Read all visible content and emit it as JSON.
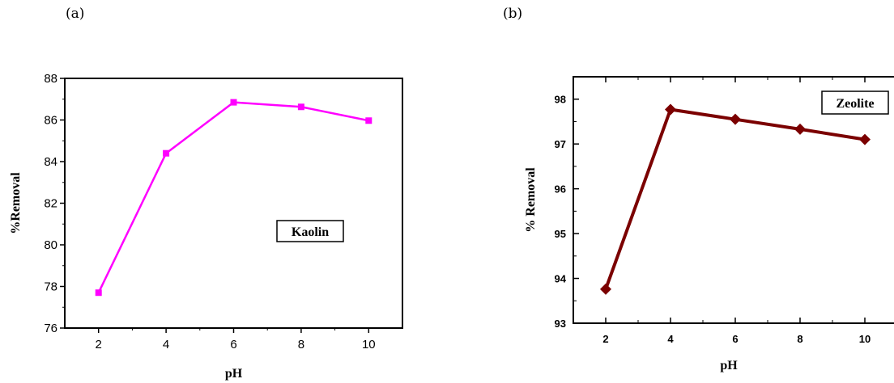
{
  "panels": {
    "a": "(a)",
    "b": "(b)"
  },
  "chart_data": [
    {
      "type": "line",
      "x": [
        2,
        4,
        6,
        8,
        10
      ],
      "series": [
        {
          "values": [
            77.7,
            84.4,
            86.85,
            86.63,
            85.97
          ],
          "color": "#ff00ff",
          "marker": "square"
        }
      ],
      "xlabel": "pH",
      "ylabel": "%Removal",
      "xlim": [
        1,
        11
      ],
      "ylim": [
        76,
        88
      ],
      "xticks": [
        2,
        4,
        6,
        8,
        10
      ],
      "yticks": [
        76,
        78,
        80,
        82,
        84,
        86,
        88
      ],
      "annotation": "Kaolin",
      "grid": false
    },
    {
      "type": "line",
      "x": [
        2,
        4,
        6,
        8,
        10
      ],
      "series": [
        {
          "values": [
            93.76,
            97.77,
            97.55,
            97.33,
            97.1
          ],
          "color": "#7b0000",
          "marker": "diamond"
        }
      ],
      "xlabel": "pH",
      "ylabel": "% Removal",
      "xlim": [
        1,
        11
      ],
      "ylim": [
        93,
        98.5
      ],
      "xticks": [
        2,
        4,
        6,
        8,
        10
      ],
      "yticks": [
        93,
        94,
        95,
        96,
        97,
        98
      ],
      "annotation": "Zeolite",
      "grid": false
    }
  ]
}
